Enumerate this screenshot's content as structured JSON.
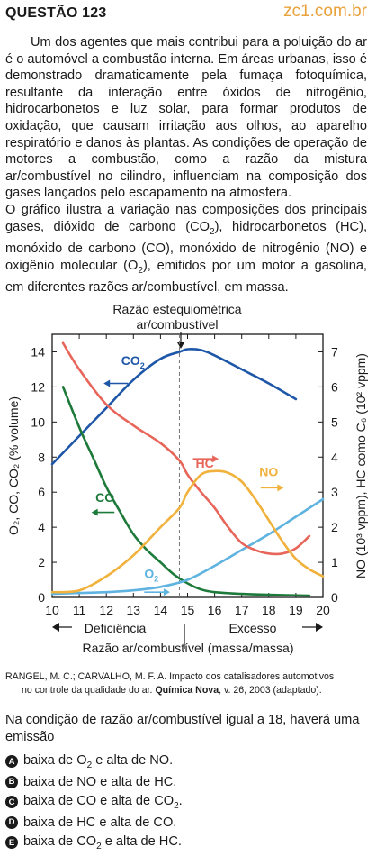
{
  "header": {
    "question": "QUESTÃO 123",
    "site": "zc1.com.br"
  },
  "text": {
    "p1": "Um dos agentes que mais contribui para a poluição do ar é o automóvel a combustão interna. Em áreas urbanas, isso é demonstrado dramaticamente pela fumaça fotoquímica, resultante da interação entre óxidos de nitrogênio, hidrocarbonetos e luz solar, para formar produtos de oxidação, que causam irritação aos olhos, ao aparelho respiratório e danos às plantas. As condições de operação de motores a combustão, como a razão da mistura ar/combustível no cilindro, influenciam na composição dos gases lançados pelo escapamento na atmosfera.",
    "p2_a": "O gráfico ilustra a variação nas composições dos principais gases, dióxido de carbono (CO",
    "p2_b": "), hidrocarbonetos (HC), monóxido de carbono (CO), monóxido de nitrogênio (NO) e oxigênio molecular (O",
    "p2_c": "), emitidos por um motor a gasolina, em diferentes razões ar/combustível, em massa."
  },
  "chart_data": {
    "type": "line",
    "annotation_top": [
      "Razão estequiométrica",
      "ar/combustível"
    ],
    "xlabel": "Razão ar/combustível (massa/massa)",
    "x_regions": [
      "Deficiência",
      "Excesso"
    ],
    "ylabel_left": "O₂, CO, CO₂ (% volume)",
    "ylabel_right": "NO (10³ vppm), HC como C₆ (10² vppm)",
    "xlim": [
      10,
      20
    ],
    "ylim_left": [
      0,
      15
    ],
    "ylim_right": [
      0,
      7.5
    ],
    "x_ticks": [
      10,
      11,
      12,
      13,
      14,
      15,
      16,
      17,
      18,
      19,
      20
    ],
    "y_left_ticks": [
      0,
      2,
      4,
      6,
      8,
      10,
      12,
      14
    ],
    "y_right_ticks": [
      0,
      1,
      2,
      3,
      4,
      5,
      6,
      7
    ],
    "stoichiometric_x": 14.7,
    "series": [
      {
        "name": "CO₂",
        "color": "#1f57a8",
        "axis": "left",
        "x": [
          10,
          11,
          12,
          13,
          14,
          14.7,
          15,
          15.5,
          16,
          17,
          18,
          19
        ],
        "y": [
          7.6,
          9.2,
          10.8,
          12.4,
          13.6,
          14.0,
          14.15,
          14.1,
          13.8,
          13.0,
          12.2,
          11.3
        ]
      },
      {
        "name": "CO",
        "color": "#1d7a3a",
        "axis": "left",
        "x": [
          10.4,
          11,
          11.5,
          12,
          12.5,
          13,
          13.5,
          14,
          14.5,
          15,
          15.5,
          16,
          17,
          18,
          19.5
        ],
        "y": [
          12.0,
          9.7,
          8.0,
          6.3,
          4.9,
          3.6,
          2.7,
          2.0,
          1.3,
          0.8,
          0.45,
          0.3,
          0.2,
          0.15,
          0.1
        ]
      },
      {
        "name": "O₂",
        "color": "#5fb3e0",
        "axis": "left",
        "x": [
          10,
          11,
          12,
          13,
          14,
          15,
          16,
          17,
          18,
          19,
          20
        ],
        "y": [
          0.2,
          0.25,
          0.3,
          0.4,
          0.6,
          1.0,
          1.8,
          2.7,
          3.6,
          4.6,
          5.6
        ]
      },
      {
        "name": "HC",
        "color": "#e8655a",
        "axis": "right",
        "x": [
          10.4,
          11,
          12,
          13,
          14,
          14.7,
          15,
          15.5,
          16,
          16.5,
          17,
          17.5,
          18,
          18.5,
          19,
          19.5
        ],
        "y": [
          7.25,
          6.5,
          5.5,
          4.9,
          4.4,
          3.9,
          3.5,
          3.0,
          2.55,
          2.0,
          1.55,
          1.35,
          1.25,
          1.25,
          1.4,
          1.75
        ]
      },
      {
        "name": "NO",
        "color": "#f0b23c",
        "axis": "right",
        "x": [
          10,
          11,
          12,
          13,
          14,
          14.7,
          15,
          15.5,
          16,
          16.5,
          17,
          17.5,
          18,
          18.5,
          19,
          19.5,
          20
        ],
        "y": [
          0.15,
          0.2,
          0.6,
          1.2,
          2.0,
          2.55,
          3.0,
          3.5,
          3.6,
          3.55,
          3.3,
          2.8,
          2.2,
          1.6,
          1.1,
          0.8,
          0.6
        ]
      }
    ]
  },
  "citation": {
    "authors": "RANGEL, M. C.; CARVALHO, M. F. A. Impacto dos catalisadores automotivos",
    "rest_a": "no controle da qualidade do ar. ",
    "journal": "Química Nova",
    "rest_b": ", v. 26, 2003 (adaptado)."
  },
  "prompt": "Na condição de razão ar/combustível igual a 18, haverá uma emissão",
  "options": [
    {
      "letter": "A",
      "parts": [
        "baixa de O",
        "2",
        " e alta de NO."
      ]
    },
    {
      "letter": "B",
      "parts": [
        "baixa de NO e alta de HC.",
        "",
        ""
      ]
    },
    {
      "letter": "C",
      "parts": [
        "baixa de CO e alta de CO",
        "2",
        "."
      ]
    },
    {
      "letter": "D",
      "parts": [
        "baixa de HC e alta de CO.",
        "",
        ""
      ]
    },
    {
      "letter": "E",
      "parts": [
        "baixa de CO",
        "2",
        " e alta de HC."
      ]
    }
  ]
}
